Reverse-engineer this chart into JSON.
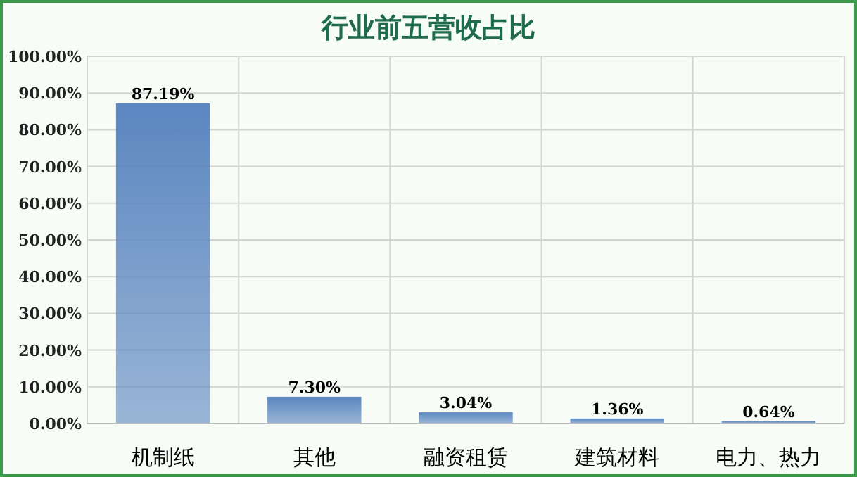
{
  "chart_data": {
    "type": "bar",
    "title": "行业前五营收占比",
    "categories": [
      "机制纸",
      "其他",
      "融资租赁",
      "建筑材料",
      "电力、热力"
    ],
    "values": [
      87.19,
      7.3,
      3.04,
      1.36,
      0.64
    ],
    "value_labels": [
      "87.19%",
      "7.30%",
      "3.04%",
      "1.36%",
      "0.64%"
    ],
    "color": "#5b86c0",
    "ylim": [
      0,
      100
    ],
    "yticks": [
      {
        "value": 0,
        "label": "0.00%"
      },
      {
        "value": 10,
        "label": "10.00%"
      },
      {
        "value": 20,
        "label": "20.00%"
      },
      {
        "value": 30,
        "label": "30.00%"
      },
      {
        "value": 40,
        "label": "40.00%"
      },
      {
        "value": 50,
        "label": "50.00%"
      },
      {
        "value": 60,
        "label": "60.00%"
      },
      {
        "value": 70,
        "label": "70.00%"
      },
      {
        "value": 80,
        "label": "80.00%"
      },
      {
        "value": 90,
        "label": "90.00%"
      },
      {
        "value": 100,
        "label": "100.00%"
      }
    ],
    "grid": true
  }
}
